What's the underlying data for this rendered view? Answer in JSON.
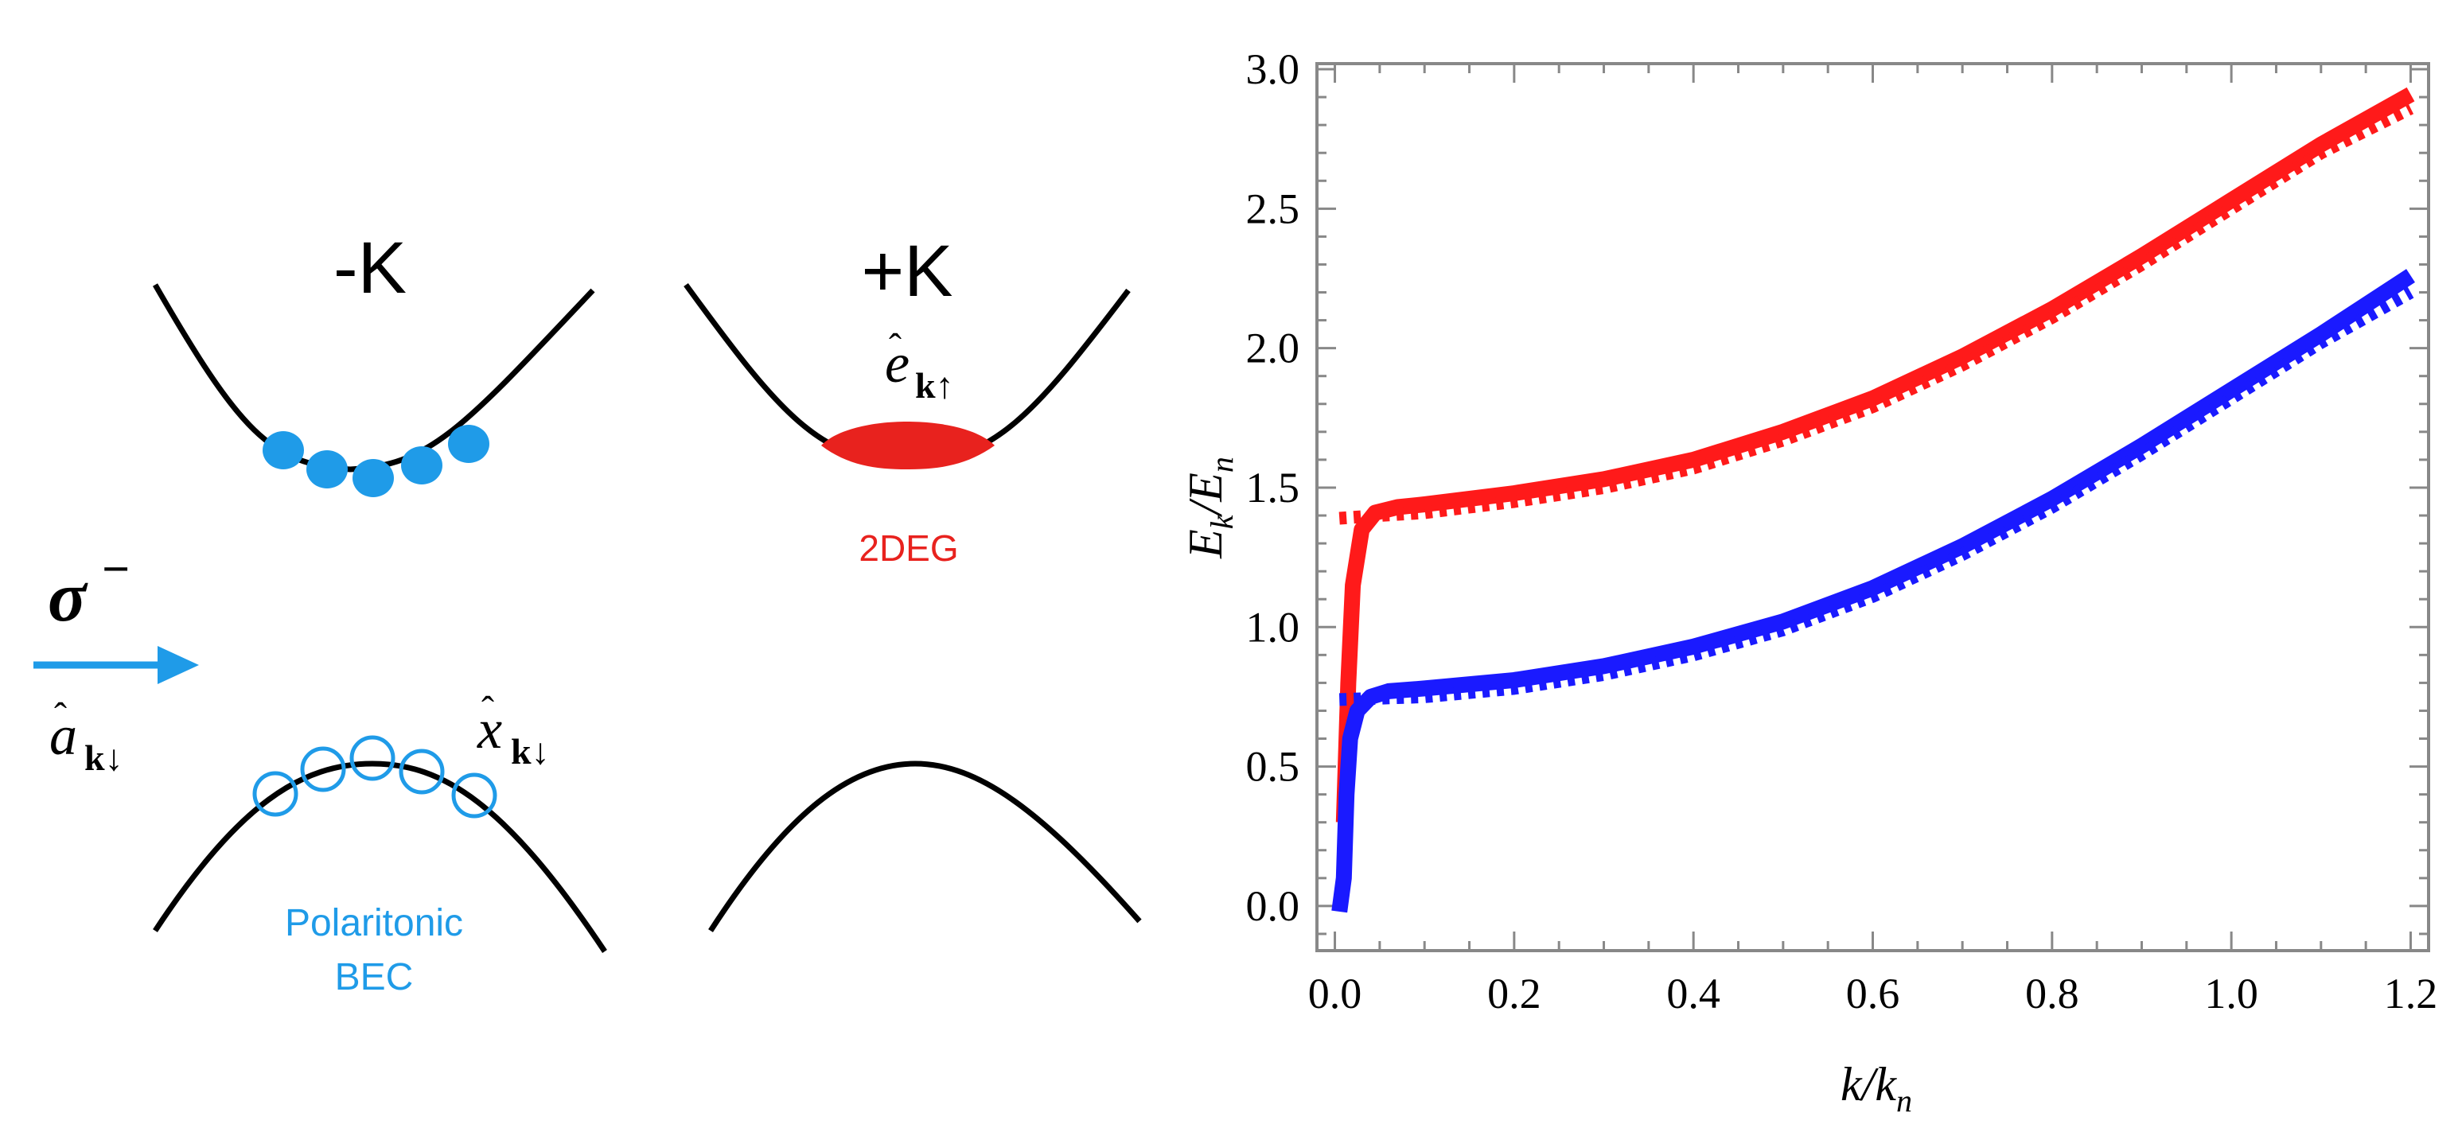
{
  "diagram": {
    "valley_left_label": "-K",
    "valley_right_label": "+K",
    "polarization_label": "σ",
    "polarization_superscript": "−",
    "photon_operator": {
      "base": "a",
      "subscript": "k↓"
    },
    "exciton_operator": {
      "base": "x",
      "subscript": "k↓"
    },
    "electron_operator": {
      "base": "e",
      "subscript": "k↑"
    },
    "gas_label": "2DEG",
    "condensate_label_line1": "Polaritonic",
    "condensate_label_line2": "BEC",
    "colors": {
      "electron": "#e8221e",
      "polariton": "#1f9be8",
      "arrow": "#1f9be8",
      "bands": "#000000"
    }
  },
  "chart_data": {
    "type": "line",
    "xlabel": {
      "base": "k",
      "sub": "n",
      "text": "k/k_n"
    },
    "ylabel": {
      "base": "E",
      "sub_num": "k",
      "sub_den": "n",
      "text": "E_k/E_n"
    },
    "xlim": [
      -0.02,
      1.22
    ],
    "ylim": [
      -0.16,
      3.02
    ],
    "x_ticks": [
      0.0,
      0.2,
      0.4,
      0.6,
      0.8,
      1.0,
      1.2
    ],
    "x_tick_labels": [
      "0.0",
      "0.2",
      "0.4",
      "0.6",
      "0.8",
      "1.0",
      "1.2"
    ],
    "y_ticks": [
      0.0,
      0.5,
      1.0,
      1.5,
      2.0,
      2.5,
      3.0
    ],
    "y_tick_labels": [
      "0.0",
      "0.5",
      "1.0",
      "1.5",
      "2.0",
      "2.5",
      "3.0"
    ],
    "series": [
      {
        "name": "upper-solid",
        "color": "#ff1a1a",
        "style": "solid",
        "points": [
          [
            0.01,
            0.3
          ],
          [
            0.015,
            0.8
          ],
          [
            0.02,
            1.15
          ],
          [
            0.03,
            1.35
          ],
          [
            0.045,
            1.41
          ],
          [
            0.07,
            1.43
          ],
          [
            0.1,
            1.44
          ],
          [
            0.2,
            1.48
          ],
          [
            0.3,
            1.53
          ],
          [
            0.4,
            1.6
          ],
          [
            0.5,
            1.7
          ],
          [
            0.6,
            1.82
          ],
          [
            0.7,
            1.97
          ],
          [
            0.8,
            2.14
          ],
          [
            0.9,
            2.33
          ],
          [
            1.0,
            2.53
          ],
          [
            1.1,
            2.73
          ],
          [
            1.2,
            2.91
          ]
        ]
      },
      {
        "name": "upper-dotted",
        "color": "#ff1a1a",
        "style": "dotted",
        "points": [
          [
            0.005,
            1.39
          ],
          [
            0.05,
            1.4
          ],
          [
            0.1,
            1.41
          ],
          [
            0.2,
            1.45
          ],
          [
            0.3,
            1.5
          ],
          [
            0.4,
            1.57
          ],
          [
            0.5,
            1.67
          ],
          [
            0.6,
            1.79
          ],
          [
            0.7,
            1.94
          ],
          [
            0.8,
            2.11
          ],
          [
            0.9,
            2.3
          ],
          [
            1.0,
            2.5
          ],
          [
            1.1,
            2.7
          ],
          [
            1.2,
            2.86
          ]
        ]
      },
      {
        "name": "lower-solid",
        "color": "#1a1aff",
        "style": "solid",
        "points": [
          [
            0.005,
            -0.02
          ],
          [
            0.01,
            0.1
          ],
          [
            0.013,
            0.4
          ],
          [
            0.017,
            0.6
          ],
          [
            0.025,
            0.7
          ],
          [
            0.04,
            0.75
          ],
          [
            0.06,
            0.77
          ],
          [
            0.1,
            0.78
          ],
          [
            0.2,
            0.81
          ],
          [
            0.3,
            0.86
          ],
          [
            0.4,
            0.93
          ],
          [
            0.5,
            1.02
          ],
          [
            0.6,
            1.14
          ],
          [
            0.7,
            1.29
          ],
          [
            0.8,
            1.46
          ],
          [
            0.9,
            1.65
          ],
          [
            1.0,
            1.85
          ],
          [
            1.1,
            2.05
          ],
          [
            1.2,
            2.26
          ]
        ]
      },
      {
        "name": "lower-dotted",
        "color": "#1a1aff",
        "style": "dotted",
        "points": [
          [
            0.005,
            0.74
          ],
          [
            0.05,
            0.745
          ],
          [
            0.1,
            0.75
          ],
          [
            0.2,
            0.78
          ],
          [
            0.3,
            0.83
          ],
          [
            0.4,
            0.9
          ],
          [
            0.5,
            0.99
          ],
          [
            0.6,
            1.11
          ],
          [
            0.7,
            1.26
          ],
          [
            0.8,
            1.43
          ],
          [
            0.9,
            1.62
          ],
          [
            1.0,
            1.82
          ],
          [
            1.1,
            2.02
          ],
          [
            1.2,
            2.2
          ]
        ]
      }
    ]
  }
}
